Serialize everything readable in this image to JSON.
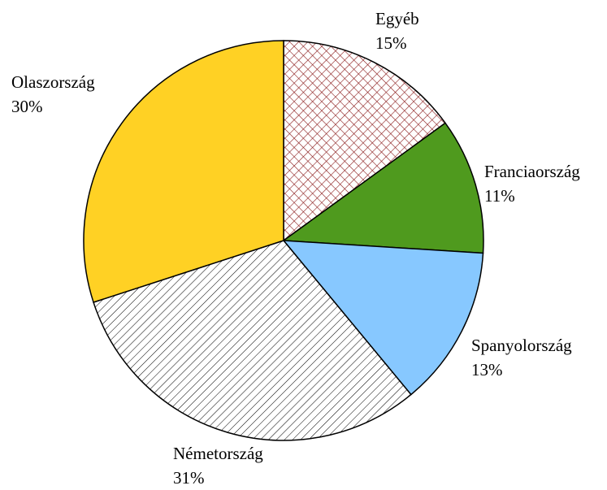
{
  "chart_data": {
    "type": "pie",
    "categories": [
      "Egyéb",
      "Franciaország",
      "Spanyolország",
      "Németország",
      "Olaszország"
    ],
    "values": [
      15,
      11,
      13,
      31,
      30
    ],
    "value_labels": [
      "15%",
      "11%",
      "13%",
      "31%",
      "30%"
    ],
    "colors": [
      "#8b1a1a",
      "#4f9a1e",
      "#87c8ff",
      "#000000",
      "#ffd124"
    ],
    "patterns": [
      "crosshatch",
      "solid",
      "solid",
      "hatch",
      "solid"
    ]
  }
}
